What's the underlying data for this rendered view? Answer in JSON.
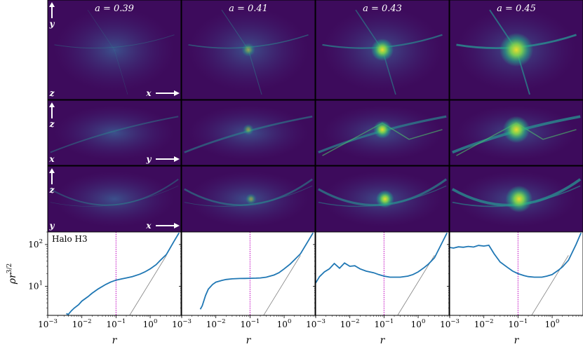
{
  "columns": [
    {
      "label": "a = 0.39"
    },
    {
      "label": "a = 0.41"
    },
    {
      "label": "a = 0.43"
    },
    {
      "label": "a = 0.45"
    }
  ],
  "projections": [
    {
      "vertical": "y",
      "horizontal": "x",
      "corner": "z"
    },
    {
      "vertical": "z",
      "horizontal": "y",
      "corner": "x"
    },
    {
      "vertical": "z",
      "horizontal": "x",
      "corner": "y"
    }
  ],
  "colors": {
    "bg_dark": "#3d0b5c",
    "bg_mid": "#47267a",
    "teal": "#2a8a8e",
    "green": "#4fc16b",
    "yellow": "#f0e42a",
    "line": "#1f77b4",
    "ref_line": "#808080",
    "marker": "#c000c0"
  },
  "chart_data": {
    "type": "line",
    "halo_label": "Halo H3",
    "xlabel": "r",
    "ylabel": "ρr^{3/2}",
    "xscale": "log",
    "yscale": "log",
    "xlim": [
      0.001,
      8
    ],
    "ylim": [
      2,
      200
    ],
    "xticks": [
      {
        "value": 0.001,
        "label": "10",
        "exp": "−3"
      },
      {
        "value": 0.01,
        "label": "10",
        "exp": "−2"
      },
      {
        "value": 0.1,
        "label": "10",
        "exp": "−1"
      },
      {
        "value": 1,
        "label": "10",
        "exp": "0"
      }
    ],
    "yticks": [
      {
        "value": 10,
        "label": "10",
        "exp": "1"
      },
      {
        "value": 100,
        "label": "10",
        "exp": "2"
      }
    ],
    "vline_x": 0.1,
    "reference_line": {
      "x": [
        0.25,
        3.0
      ],
      "y": [
        2,
        55
      ]
    },
    "panels": [
      {
        "x": [
          0.0035,
          0.004,
          0.005,
          0.006,
          0.008,
          0.01,
          0.015,
          0.02,
          0.03,
          0.05,
          0.07,
          0.1,
          0.15,
          0.2,
          0.3,
          0.5,
          0.7,
          1.0,
          1.5,
          2.0,
          3.0,
          5.0,
          7.0
        ],
        "y": [
          2.2,
          2.1,
          2.6,
          3.0,
          3.6,
          4.4,
          5.6,
          6.8,
          8.6,
          11.0,
          12.6,
          14.0,
          15.0,
          15.8,
          17.0,
          19.5,
          22.0,
          26.0,
          33.0,
          42.0,
          58.0,
          120.0,
          190.0
        ]
      },
      {
        "x": [
          0.0035,
          0.004,
          0.005,
          0.006,
          0.008,
          0.01,
          0.015,
          0.02,
          0.03,
          0.05,
          0.07,
          0.1,
          0.15,
          0.2,
          0.3,
          0.5,
          0.7,
          1.0,
          1.5,
          2.0,
          3.0,
          5.0,
          7.0
        ],
        "y": [
          2.8,
          3.4,
          6.0,
          8.5,
          11.0,
          12.5,
          13.8,
          14.5,
          15.0,
          15.3,
          15.4,
          15.5,
          15.6,
          15.8,
          16.5,
          18.5,
          21.0,
          26.0,
          34.0,
          43.0,
          60.0,
          120.0,
          190.0
        ]
      },
      {
        "x": [
          0.001,
          0.0013,
          0.0018,
          0.0025,
          0.0035,
          0.005,
          0.007,
          0.01,
          0.014,
          0.02,
          0.03,
          0.05,
          0.07,
          0.1,
          0.15,
          0.2,
          0.3,
          0.5,
          0.7,
          1.0,
          1.5,
          2.0,
          3.0,
          5.0,
          7.0
        ],
        "y": [
          12.0,
          17.0,
          22.0,
          26.0,
          35.0,
          27.0,
          36.0,
          30.0,
          31.0,
          26.0,
          23.0,
          21.0,
          19.0,
          17.5,
          16.5,
          16.5,
          16.5,
          17.5,
          19.0,
          22.0,
          28.0,
          34.0,
          48.0,
          110.0,
          190.0
        ]
      },
      {
        "x": [
          0.001,
          0.0013,
          0.0018,
          0.0025,
          0.0035,
          0.005,
          0.007,
          0.01,
          0.014,
          0.02,
          0.03,
          0.05,
          0.07,
          0.1,
          0.15,
          0.2,
          0.3,
          0.5,
          0.7,
          1.0,
          1.5,
          2.0,
          3.0,
          5.0,
          7.0
        ],
        "y": [
          85.0,
          82.0,
          88.0,
          86.0,
          90.0,
          87.0,
          95.0,
          92.0,
          96.0,
          60.0,
          38.0,
          28.0,
          23.0,
          20.0,
          18.0,
          17.0,
          16.5,
          16.5,
          17.5,
          19.0,
          24.0,
          29.0,
          42.0,
          100.0,
          190.0
        ]
      }
    ]
  }
}
